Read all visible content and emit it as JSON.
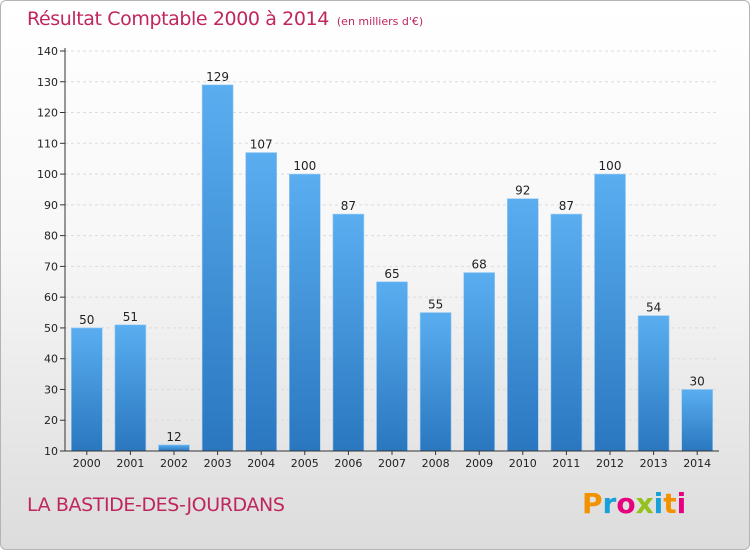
{
  "header": {
    "title": "Résultat Comptable 2000 à 2014",
    "units": "(en milliers d'€)"
  },
  "footer": {
    "commune": "LA BASTIDE-DES-JOURDANS"
  },
  "logo": {
    "letters": [
      "P",
      "r",
      "o",
      "x",
      "i",
      "t",
      "i"
    ],
    "colors": [
      "#f39200",
      "#1aa0d8",
      "#e6007e",
      "#95c11f",
      "#1aa0d8",
      "#f39200",
      "#e6007e"
    ]
  },
  "colors": {
    "title": "#c0265e",
    "bar_top": "#5aaef0",
    "bar_bottom": "#2a77c0",
    "axis": "#333333",
    "grid": "#dcdcdc"
  },
  "chart_data": {
    "type": "bar",
    "title": "Résultat Comptable 2000 à 2014",
    "subtitle": "(en milliers d'€)",
    "xlabel": "",
    "ylabel": "",
    "categories": [
      "2000",
      "2001",
      "2002",
      "2003",
      "2004",
      "2005",
      "2006",
      "2007",
      "2008",
      "2009",
      "2010",
      "2011",
      "2012",
      "2013",
      "2014"
    ],
    "values": [
      50,
      51,
      12,
      129,
      107,
      100,
      87,
      65,
      55,
      68,
      92,
      87,
      100,
      54,
      30
    ],
    "ylim": [
      10,
      140
    ],
    "yticks": [
      10,
      20,
      30,
      40,
      50,
      60,
      70,
      80,
      90,
      100,
      110,
      120,
      130,
      140
    ],
    "grid": true,
    "data_labels": true,
    "legend": "none"
  }
}
